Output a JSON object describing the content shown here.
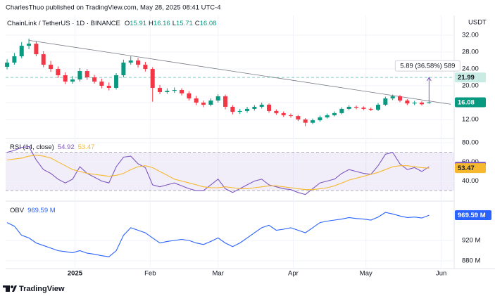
{
  "header": {
    "publisher": "CharlesThuo published on TradingView.com, May 28, 2025 08:41 UTC-4",
    "brand": "TradingView"
  },
  "chart_data": [
    {
      "type": "candlestick",
      "title": "ChainLink / TetherUS · 1D · BINANCE",
      "unit": "USDT",
      "ohlc_labels": [
        "O",
        "H",
        "L",
        "C"
      ],
      "open": [
        24.5,
        25.5,
        27.0,
        29.5,
        30.0,
        27.5,
        25.0,
        24.0,
        22.5,
        21.0,
        21.5,
        23.5,
        22.0,
        21.0,
        20.0,
        19.5,
        22.5,
        25.5,
        26.0,
        25.0,
        24.0,
        19.5,
        18.5,
        18.8,
        19.0,
        18.2,
        17.0,
        16.0,
        15.5,
        16.5,
        17.5,
        15.0,
        13.8,
        14.0,
        14.5,
        15.0,
        15.5,
        14.0,
        13.5,
        13.0,
        12.8,
        12.0,
        11.2,
        11.8,
        12.5,
        13.0,
        13.5,
        14.5,
        15.0,
        14.8,
        14.5,
        14.3,
        15.5,
        17.0,
        17.5,
        16.5,
        15.8,
        16.0,
        15.91
      ],
      "high": [
        26.3,
        27.8,
        30.4,
        31.2,
        30.6,
        28.2,
        25.9,
        24.6,
        23.2,
        22.3,
        24.2,
        24.0,
        22.6,
        21.7,
        20.8,
        23.0,
        26.2,
        27.0,
        26.6,
        25.7,
        24.4,
        20.2,
        19.4,
        19.6,
        19.4,
        18.7,
        17.6,
        16.5,
        17.0,
        18.0,
        17.9,
        15.4,
        14.5,
        15.0,
        15.4,
        16.0,
        15.8,
        14.4,
        13.9,
        13.4,
        13.1,
        12.3,
        12.2,
        12.9,
        13.4,
        13.9,
        14.9,
        15.4,
        15.3,
        15.1,
        14.8,
        15.9,
        17.4,
        17.9,
        17.8,
        16.8,
        16.4,
        16.3,
        16.16
      ],
      "low": [
        23.9,
        25.0,
        26.5,
        28.7,
        27.0,
        24.4,
        23.3,
        21.9,
        20.4,
        20.5,
        21.0,
        21.4,
        20.5,
        19.4,
        18.9,
        19.1,
        22.0,
        25.0,
        24.3,
        23.4,
        16.2,
        18.0,
        18.1,
        18.3,
        17.7,
        16.5,
        15.4,
        14.9,
        15.1,
        16.0,
        14.4,
        13.2,
        13.3,
        13.6,
        14.1,
        14.6,
        13.6,
        13.1,
        12.6,
        12.4,
        11.6,
        10.4,
        10.9,
        11.5,
        12.2,
        12.7,
        13.2,
        14.2,
        14.4,
        14.2,
        14.0,
        14.0,
        15.2,
        16.6,
        16.1,
        15.4,
        15.4,
        15.3,
        15.71
      ],
      "close": [
        25.5,
        27.0,
        29.5,
        30.0,
        27.5,
        25.0,
        24.0,
        22.5,
        21.0,
        21.5,
        23.5,
        22.0,
        21.0,
        20.0,
        19.5,
        22.5,
        25.5,
        26.0,
        25.0,
        24.0,
        19.5,
        18.5,
        18.8,
        19.0,
        18.2,
        17.0,
        16.0,
        15.5,
        16.5,
        17.5,
        15.0,
        13.8,
        14.0,
        14.5,
        15.0,
        15.5,
        14.0,
        13.5,
        13.0,
        12.8,
        12.0,
        11.2,
        11.8,
        12.5,
        13.0,
        13.5,
        14.5,
        15.0,
        14.8,
        14.5,
        14.3,
        15.5,
        17.0,
        17.5,
        16.5,
        15.8,
        16.0,
        15.6,
        16.08
      ],
      "up_color": "#089981",
      "down_color": "#f23645",
      "xlim": [
        -0.2,
        61.45
      ],
      "xticks": [
        {
          "value": 9.33,
          "label": "2025"
        },
        {
          "value": 19.67,
          "label": "Feb"
        },
        {
          "value": 29,
          "label": "Mar"
        },
        {
          "value": 39.33,
          "label": "Apr"
        },
        {
          "value": 49.33,
          "label": "May"
        },
        {
          "value": 59.67,
          "label": "Jun"
        }
      ],
      "ylim": [
        7.8,
        33.7
      ],
      "yticks": [
        {
          "value": 12,
          "label": "12.00"
        },
        {
          "value": 16,
          "label": "16.00"
        },
        {
          "value": 20,
          "label": "20.00"
        },
        {
          "value": 24,
          "label": "24.00"
        },
        {
          "value": 28,
          "label": "28.00"
        },
        {
          "value": 32,
          "label": "32.00"
        }
      ],
      "grid": true,
      "trendline": [
        [
          3,
          30.8
        ],
        [
          61,
          15.6
        ]
      ],
      "hline": 21.99,
      "hline_color": "#089981",
      "measure": {
        "x": 58,
        "from": 16.1,
        "to": 21.99,
        "label": "5.89 (36.58%) 589"
      }
    },
    {
      "type": "line",
      "title": "RSI (14, close)",
      "ylim": [
        22,
        83.7
      ],
      "yticks": [
        {
          "value": 40,
          "label": "40.00"
        },
        {
          "value": 60,
          "label": "60.00"
        },
        {
          "value": 80,
          "label": "80.00"
        }
      ],
      "band": [
        30,
        70
      ],
      "series": [
        {
          "name": "RSI",
          "color": "#7e57c2",
          "values": [
            70,
            72,
            75,
            76,
            62,
            52,
            48,
            42,
            38,
            42,
            55,
            48,
            44,
            40,
            38,
            55,
            65,
            66,
            58,
            54,
            36,
            34,
            36,
            38,
            35,
            32,
            30,
            30,
            36,
            42,
            32,
            28,
            32,
            36,
            40,
            42,
            36,
            34,
            32,
            31,
            28,
            26,
            32,
            38,
            40,
            42,
            48,
            52,
            50,
            48,
            47,
            56,
            68,
            70,
            58,
            52,
            54,
            50,
            54.92
          ]
        },
        {
          "name": "MA",
          "color": "#f5b82e",
          "values": [
            62,
            63,
            64,
            66,
            67,
            66,
            64,
            60,
            56,
            52,
            50,
            48,
            47,
            46,
            45,
            46,
            48,
            52,
            55,
            56,
            54,
            50,
            46,
            42,
            40,
            38,
            36,
            34,
            33,
            33,
            34,
            33,
            32,
            32,
            33,
            34,
            35,
            35,
            34,
            33,
            32,
            31,
            31,
            32,
            33,
            35,
            38,
            41,
            43,
            45,
            47,
            49,
            52,
            55,
            56,
            56,
            55,
            54,
            53.47
          ]
        }
      ]
    },
    {
      "type": "line",
      "title": "OBV",
      "ylim": [
        864.8,
        994.5
      ],
      "yticks": [
        {
          "value": 880,
          "label": "880 M"
        },
        {
          "value": 920,
          "label": "920 M"
        }
      ],
      "last_label": "969.59 M",
      "series": [
        {
          "name": "OBV",
          "color": "#2962ff",
          "values": [
            955,
            948,
            930,
            925,
            915,
            910,
            905,
            900,
            898,
            896,
            900,
            895,
            893,
            890,
            888,
            900,
            930,
            945,
            940,
            935,
            925,
            915,
            918,
            920,
            922,
            920,
            915,
            912,
            918,
            925,
            915,
            908,
            915,
            925,
            935,
            945,
            950,
            940,
            942,
            945,
            940,
            935,
            945,
            955,
            958,
            960,
            962,
            965,
            963,
            962,
            960,
            966,
            975,
            972,
            968,
            965,
            966,
            964,
            969.59
          ]
        }
      ]
    }
  ]
}
